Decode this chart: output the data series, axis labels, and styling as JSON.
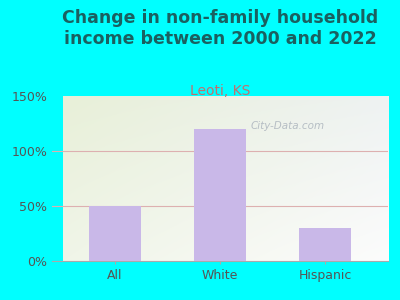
{
  "categories": [
    "All",
    "White",
    "Hispanic"
  ],
  "values": [
    50,
    120,
    30
  ],
  "bar_color": "#c9b8e8",
  "bar_edgecolor": "none",
  "title": "Change in non-family household\nincome between 2000 and 2022",
  "subtitle": "Leoti, KS",
  "title_fontsize": 12.5,
  "subtitle_fontsize": 10,
  "title_color": "#1a6060",
  "subtitle_color": "#c07070",
  "ylim": [
    0,
    150
  ],
  "yticks": [
    0,
    50,
    100,
    150
  ],
  "yticklabels": [
    "0%",
    "50%",
    "100%",
    "150%"
  ],
  "outer_bg": "#00ffff",
  "plot_bg_topleft": "#e8f0d8",
  "plot_bg_topright": "#e8eef0",
  "plot_bg_bottomleft": "#f0f5e8",
  "plot_bg_bottomright": "#f8f8f8",
  "grid_color": "#ddb0b0",
  "tick_color": "#555555",
  "watermark": "City-Data.com",
  "watermark_color": "#b0b8c0"
}
